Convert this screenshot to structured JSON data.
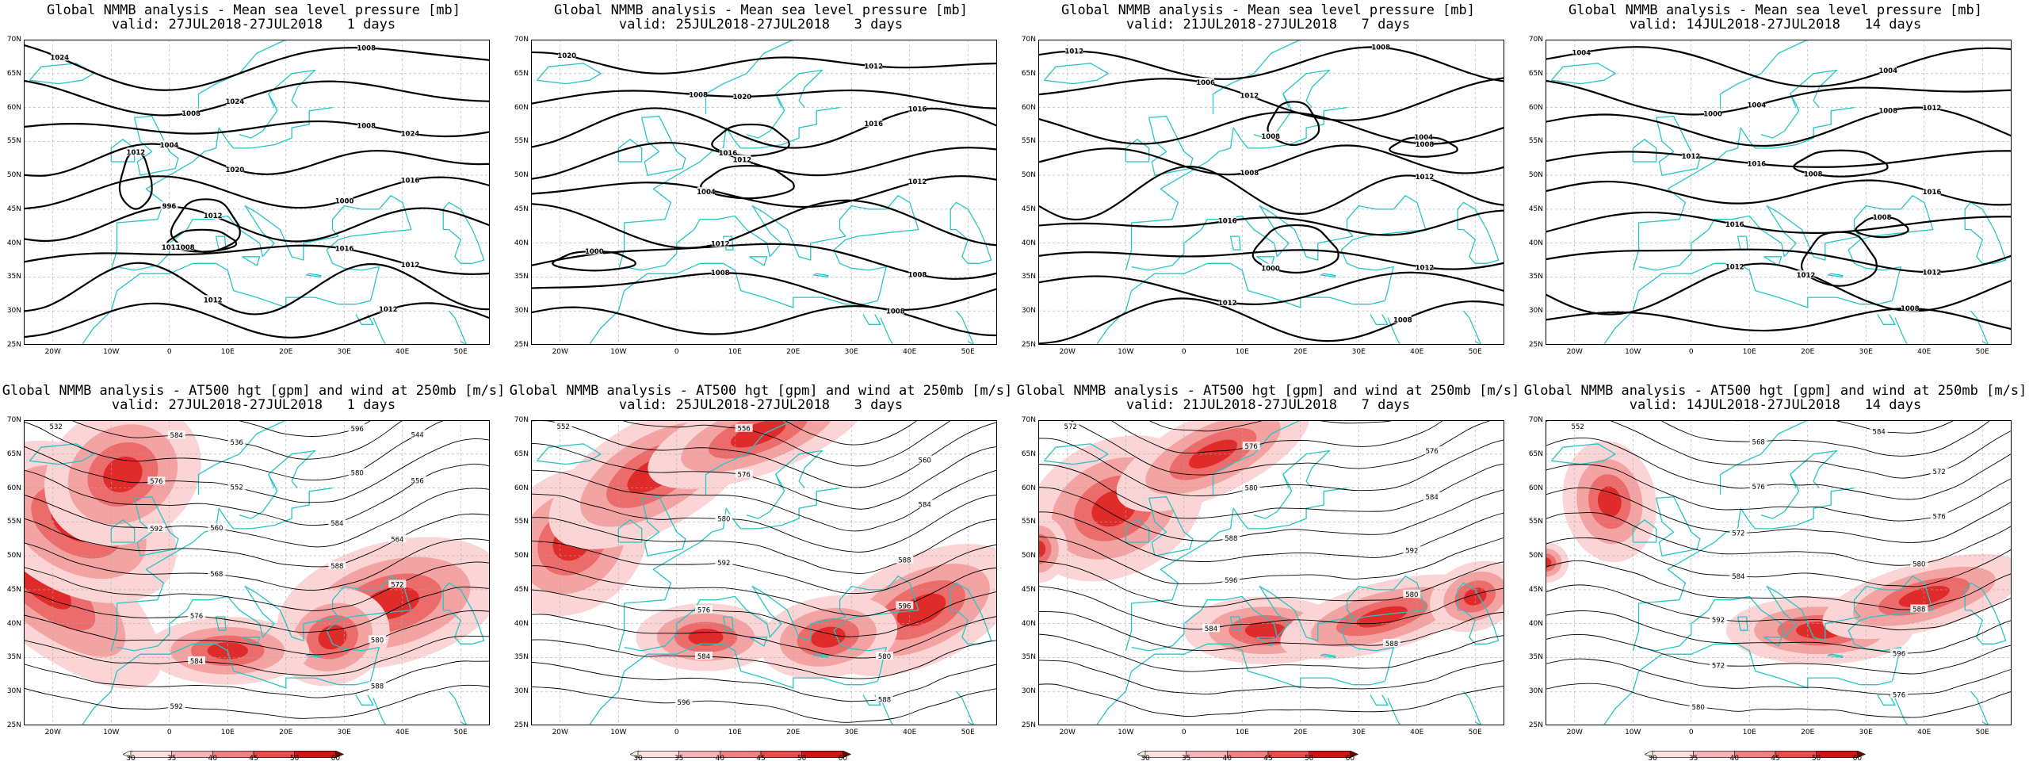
{
  "colors": {
    "coast": "#29c4c4",
    "contour": "#000000",
    "grid": "#aaaaaa",
    "wind": "#e8202a"
  },
  "axes": {
    "lat_labels": [
      "70N",
      "65N",
      "60N",
      "55N",
      "50N",
      "45N",
      "40N",
      "35N",
      "30N",
      "25N"
    ],
    "lon_labels": [
      "20W",
      "10W",
      "0",
      "10E",
      "20E",
      "30E",
      "40E",
      "50E"
    ]
  },
  "colorbar": {
    "labels": [
      "30",
      "35",
      "40",
      "45",
      "50",
      "60"
    ]
  },
  "panels": [
    {
      "title": "Global NMMB analysis - Mean sea level pressure [mb]",
      "subtitle": "valid: 27JUL2018-27JUL2018   1 days",
      "field": "mslp",
      "labels": [
        "1024",
        "1024",
        "1024",
        "1020",
        "1016",
        "1012",
        "1012",
        "1012",
        "1012",
        "1012",
        "1012",
        "1008",
        "1008",
        "1008",
        "1008",
        "1004",
        "1000",
        "996",
        "1016"
      ]
    },
    {
      "title": "Global NMMB analysis - Mean sea level pressure [mb]",
      "subtitle": "valid: 25JUL2018-27JUL2018   3 days",
      "field": "mslp",
      "labels": [
        "1020",
        "1020",
        "1016",
        "1012",
        "1012",
        "1012",
        "1008",
        "1008",
        "1008",
        "1004",
        "1000",
        "1016",
        "1012",
        "1008",
        "1016"
      ]
    },
    {
      "title": "Global NMMB analysis - Mean sea level pressure [mb]",
      "subtitle": "valid: 21JUL2018-27JUL2018   7 days",
      "field": "mslp",
      "labels": [
        "1012",
        "1012",
        "1008",
        "1008",
        "1012",
        "1016",
        "1012",
        "1012",
        "1008",
        "1008",
        "1004",
        "1000",
        "1008",
        "1006"
      ]
    },
    {
      "title": "Global NMMB analysis - Mean sea level pressure [mb]",
      "subtitle": "valid: 14JUL2018-27JUL2018   14 days",
      "field": "mslp",
      "labels": [
        "1004",
        "1004",
        "1012",
        "1016",
        "1016",
        "1016",
        "1012",
        "1012",
        "1008",
        "1012",
        "1008",
        "1008",
        "1004",
        "1000",
        "1008",
        "1012"
      ]
    },
    {
      "title": "Global NMMB analysis - AT500 hgt [gpm] and wind at 250mb [m/s]",
      "subtitle": "valid: 27JUL2018-27JUL2018   1 days",
      "field": "z500",
      "labels": [
        "532",
        "536",
        "544",
        "552",
        "556",
        "560",
        "564",
        "568",
        "572",
        "576",
        "580",
        "584",
        "588",
        "592",
        "596",
        "584",
        "580",
        "576",
        "584",
        "592",
        "588"
      ]
    },
    {
      "title": "Global NMMB analysis - AT500 hgt [gpm] and wind at 250mb [m/s]",
      "subtitle": "valid: 25JUL2018-27JUL2018   3 days",
      "field": "z500",
      "labels": [
        "552",
        "556",
        "560",
        "576",
        "584",
        "580",
        "588",
        "592",
        "596",
        "576",
        "580",
        "584",
        "588",
        "596"
      ]
    },
    {
      "title": "Global NMMB analysis - AT500 hgt [gpm] and wind at 250mb [m/s]",
      "subtitle": "valid: 21JUL2018-27JUL2018   7 days",
      "field": "z500",
      "labels": [
        "572",
        "576",
        "576",
        "580",
        "584",
        "588",
        "592",
        "596",
        "580",
        "584",
        "588"
      ]
    },
    {
      "title": "Global NMMB analysis - AT500 hgt [gpm] and wind at 250mb [m/s]",
      "subtitle": "valid: 14JUL2018-27JUL2018   14 days",
      "field": "z500",
      "labels": [
        "552",
        "568",
        "572",
        "576",
        "576",
        "572",
        "580",
        "584",
        "588",
        "592",
        "596",
        "572",
        "576",
        "580",
        "584"
      ]
    }
  ]
}
